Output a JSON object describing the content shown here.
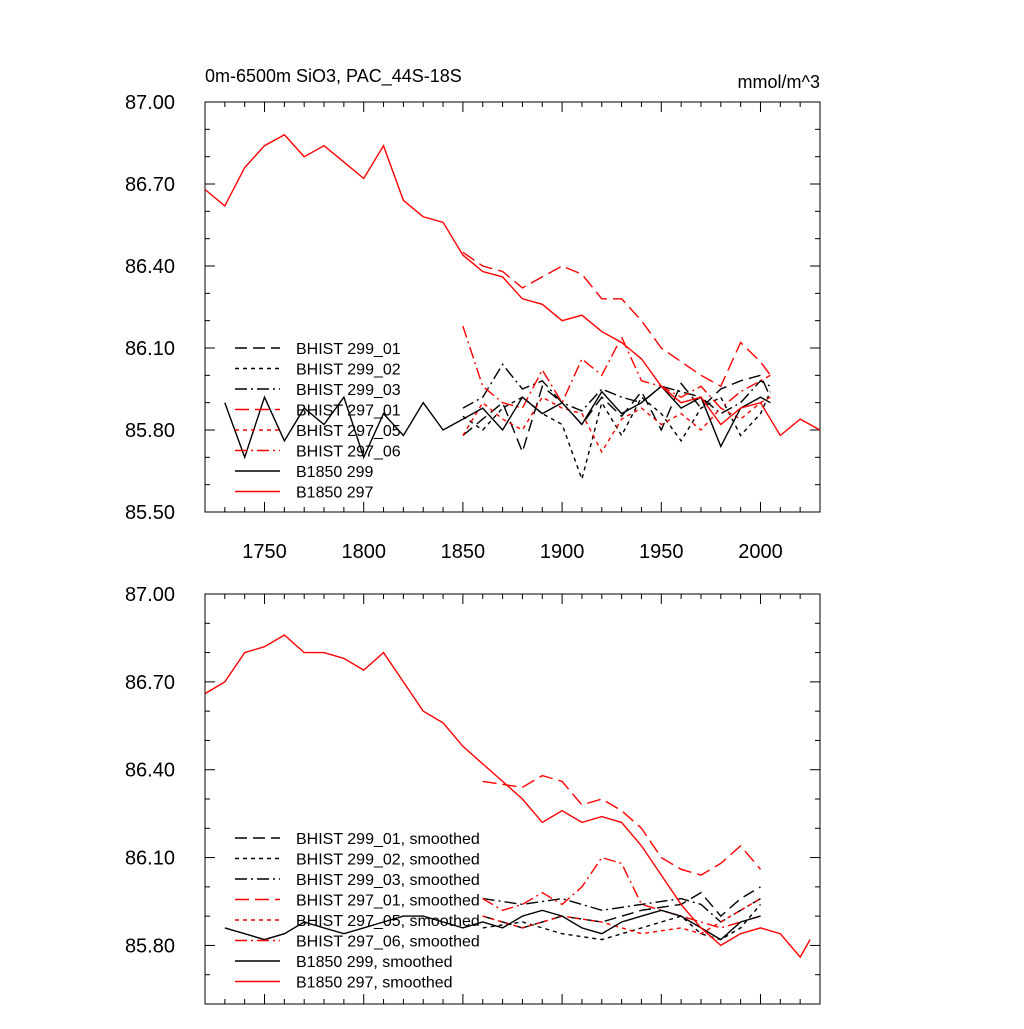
{
  "chart_data": [
    {
      "type": "line",
      "panel": "top",
      "title": "0m-6500m SiO3, PAC_44S-18S",
      "units": "mmol/m^3",
      "xlim": [
        1720,
        2030
      ],
      "ylim": [
        85.5,
        87.0
      ],
      "xticks": [
        1750,
        1800,
        1850,
        1900,
        1950,
        2000
      ],
      "xtick_labels": [
        "1750",
        "1800",
        "1850",
        "1900",
        "1950",
        "2000"
      ],
      "yticks": [
        85.5,
        85.8,
        86.1,
        86.4,
        86.7,
        87.0
      ],
      "ytick_labels": [
        "85.50",
        "85.80",
        "86.10",
        "86.40",
        "86.70",
        "87.00"
      ],
      "series": [
        {
          "name": "BHIST 299_01",
          "color": "#000000",
          "dash": "12,6",
          "x_range": [
            1850,
            2005
          ],
          "x": [
            1850,
            1860,
            1870,
            1880,
            1890,
            1900,
            1910,
            1920,
            1930,
            1940,
            1950,
            1960,
            1970,
            1980,
            1990,
            2000,
            2005
          ],
          "y": [
            85.78,
            85.84,
            85.9,
            85.72,
            85.96,
            85.9,
            85.82,
            85.92,
            85.85,
            85.94,
            85.8,
            85.97,
            85.88,
            85.95,
            85.98,
            86.0,
            85.92
          ]
        },
        {
          "name": "BHIST 299_02",
          "color": "#000000",
          "dash": "4,4",
          "x_range": [
            1850,
            2005
          ],
          "x": [
            1850,
            1860,
            1870,
            1880,
            1890,
            1900,
            1910,
            1920,
            1930,
            1940,
            1950,
            1960,
            1970,
            1980,
            1990,
            2000,
            2005
          ],
          "y": [
            85.85,
            85.8,
            85.88,
            85.92,
            85.86,
            85.82,
            85.62,
            85.9,
            85.78,
            85.92,
            85.86,
            85.76,
            85.88,
            85.92,
            85.78,
            85.86,
            85.94
          ]
        },
        {
          "name": "BHIST 299_03",
          "color": "#000000",
          "dash": "12,4,2,4",
          "x_range": [
            1850,
            2005
          ],
          "x": [
            1850,
            1860,
            1870,
            1880,
            1890,
            1900,
            1910,
            1920,
            1930,
            1940,
            1950,
            1960,
            1970,
            1980,
            1990,
            2000,
            2005
          ],
          "y": [
            85.88,
            85.92,
            86.04,
            85.95,
            85.98,
            85.9,
            85.87,
            85.95,
            85.92,
            85.9,
            85.96,
            85.94,
            85.92,
            85.86,
            85.9,
            85.98,
            85.96
          ]
        },
        {
          "name": "BHIST 297_01",
          "color": "#ff0000",
          "dash": "14,6",
          "x_range": [
            1850,
            2005
          ],
          "x": [
            1850,
            1860,
            1870,
            1880,
            1890,
            1900,
            1910,
            1920,
            1930,
            1940,
            1950,
            1960,
            1970,
            1980,
            1990,
            2000,
            2005
          ],
          "y": [
            86.45,
            86.4,
            86.38,
            86.32,
            86.36,
            86.4,
            86.37,
            86.28,
            86.28,
            86.2,
            86.1,
            86.05,
            86.0,
            85.96,
            86.12,
            86.05,
            86.0
          ]
        },
        {
          "name": "BHIST 297_05",
          "color": "#ff0000",
          "dash": "4,4",
          "x_range": [
            1850,
            2005
          ],
          "x": [
            1850,
            1860,
            1870,
            1880,
            1890,
            1900,
            1910,
            1920,
            1930,
            1940,
            1950,
            1960,
            1970,
            1980,
            1990,
            2000,
            2005
          ],
          "y": [
            85.78,
            85.9,
            85.84,
            85.8,
            85.92,
            85.88,
            85.86,
            85.72,
            85.84,
            85.88,
            85.82,
            85.86,
            85.8,
            85.88,
            85.84,
            85.9,
            85.92
          ]
        },
        {
          "name": "BHIST 297_06",
          "color": "#ff0000",
          "dash": "12,4,2,4",
          "x_range": [
            1850,
            2005
          ],
          "x": [
            1850,
            1860,
            1870,
            1880,
            1890,
            1900,
            1910,
            1920,
            1930,
            1940,
            1950,
            1960,
            1970,
            1980,
            1990,
            2000,
            2005
          ],
          "y": [
            86.18,
            85.96,
            85.9,
            85.88,
            86.02,
            85.9,
            86.06,
            86.0,
            86.14,
            85.98,
            85.96,
            85.92,
            85.96,
            85.88,
            85.94,
            85.98,
            86.0
          ]
        },
        {
          "name": "B1850 299",
          "color": "#000000",
          "dash": "",
          "x_range": [
            1730,
            2005
          ],
          "x": [
            1730,
            1740,
            1750,
            1760,
            1770,
            1780,
            1790,
            1800,
            1810,
            1820,
            1830,
            1840,
            1850,
            1860,
            1870,
            1880,
            1890,
            1900,
            1910,
            1920,
            1930,
            1940,
            1950,
            1960,
            1970,
            1980,
            1990,
            2000,
            2005
          ],
          "y": [
            85.9,
            85.7,
            85.92,
            85.76,
            85.88,
            85.82,
            85.92,
            85.7,
            85.86,
            85.78,
            85.9,
            85.8,
            85.84,
            85.88,
            85.8,
            85.92,
            85.86,
            85.9,
            85.82,
            85.94,
            85.86,
            85.9,
            85.96,
            85.88,
            85.92,
            85.74,
            85.88,
            85.92,
            85.9
          ]
        },
        {
          "name": "B1850 297",
          "color": "#ff0000",
          "dash": "",
          "x_range": [
            1720,
            2030
          ],
          "x": [
            1720,
            1730,
            1740,
            1750,
            1760,
            1770,
            1780,
            1790,
            1800,
            1810,
            1820,
            1830,
            1840,
            1850,
            1860,
            1870,
            1880,
            1890,
            1900,
            1910,
            1920,
            1930,
            1940,
            1950,
            1960,
            1970,
            1980,
            1990,
            2000,
            2010,
            2020,
            2030
          ],
          "y": [
            86.68,
            86.62,
            86.76,
            86.84,
            86.88,
            86.8,
            86.84,
            86.78,
            86.72,
            86.84,
            86.64,
            86.58,
            86.56,
            86.44,
            86.38,
            86.36,
            86.28,
            86.26,
            86.2,
            86.22,
            86.16,
            86.12,
            86.06,
            85.96,
            85.9,
            85.92,
            85.82,
            85.88,
            85.9,
            85.78,
            85.84,
            85.8
          ]
        }
      ]
    },
    {
      "type": "line",
      "panel": "bottom",
      "title": "",
      "xlim": [
        1720,
        2030
      ],
      "ylim": [
        85.6,
        87.0
      ],
      "yticks": [
        85.8,
        86.1,
        86.4,
        86.7,
        87.0
      ],
      "ytick_labels": [
        "85.80",
        "86.10",
        "86.40",
        "86.70",
        "87.00"
      ],
      "xticks": [
        1750,
        1800,
        1850,
        1900,
        1950,
        2000
      ],
      "series": [
        {
          "name": "BHIST 299_01, smoothed",
          "color": "#000000",
          "dash": "12,6",
          "x": [
            1860,
            1880,
            1900,
            1920,
            1940,
            1960,
            1970,
            1980,
            1990,
            2000
          ],
          "y": [
            85.9,
            85.86,
            85.9,
            85.88,
            85.92,
            85.94,
            85.98,
            85.9,
            85.96,
            86.0
          ]
        },
        {
          "name": "BHIST 299_02, smoothed",
          "color": "#000000",
          "dash": "4,4",
          "x": [
            1860,
            1880,
            1900,
            1920,
            1940,
            1960,
            1970,
            1980,
            1990,
            2000
          ],
          "y": [
            85.86,
            85.88,
            85.84,
            85.82,
            85.86,
            85.9,
            85.84,
            85.82,
            85.86,
            85.94
          ]
        },
        {
          "name": "BHIST 299_03, smoothed",
          "color": "#000000",
          "dash": "12,4,2,4",
          "x": [
            1860,
            1880,
            1900,
            1920,
            1940,
            1960,
            1970,
            1980,
            1990,
            2000
          ],
          "y": [
            85.96,
            85.94,
            85.96,
            85.92,
            85.94,
            85.96,
            85.94,
            85.88,
            85.92,
            85.96
          ]
        },
        {
          "name": "BHIST 297_01, smoothed",
          "color": "#ff0000",
          "dash": "14,6",
          "x": [
            1860,
            1880,
            1890,
            1900,
            1910,
            1920,
            1930,
            1940,
            1950,
            1960,
            1970,
            1980,
            1990,
            2000
          ],
          "y": [
            86.36,
            86.34,
            86.38,
            86.36,
            86.28,
            86.3,
            86.26,
            86.2,
            86.1,
            86.06,
            86.04,
            86.08,
            86.14,
            86.06
          ]
        },
        {
          "name": "BHIST 297_05, smoothed",
          "color": "#ff0000",
          "dash": "4,4",
          "x": [
            1860,
            1880,
            1900,
            1920,
            1940,
            1960,
            1970,
            1980,
            1990,
            2000
          ],
          "y": [
            85.9,
            85.86,
            85.9,
            85.88,
            85.84,
            85.86,
            85.84,
            85.88,
            85.92,
            85.96
          ]
        },
        {
          "name": "BHIST 297_06, smoothed",
          "color": "#ff0000",
          "dash": "12,4,2,4",
          "x": [
            1860,
            1870,
            1880,
            1890,
            1900,
            1910,
            1920,
            1930,
            1940,
            1950,
            1960,
            1970,
            1980,
            1990,
            2000
          ],
          "y": [
            85.96,
            85.92,
            85.94,
            85.98,
            85.94,
            86.0,
            86.1,
            86.08,
            85.94,
            85.92,
            85.9,
            85.88,
            85.86,
            85.88,
            85.9
          ]
        },
        {
          "name": "B1850 299, smoothed",
          "color": "#000000",
          "dash": "",
          "x": [
            1730,
            1740,
            1750,
            1760,
            1770,
            1780,
            1790,
            1800,
            1810,
            1820,
            1830,
            1840,
            1850,
            1860,
            1870,
            1880,
            1890,
            1900,
            1910,
            1920,
            1930,
            1940,
            1950,
            1960,
            1970,
            1980,
            1990,
            2000
          ],
          "y": [
            85.86,
            85.84,
            85.82,
            85.84,
            85.88,
            85.86,
            85.84,
            85.86,
            85.88,
            85.9,
            85.9,
            85.88,
            85.86,
            85.88,
            85.86,
            85.9,
            85.92,
            85.9,
            85.86,
            85.84,
            85.88,
            85.9,
            85.92,
            85.9,
            85.86,
            85.82,
            85.88,
            85.9
          ]
        },
        {
          "name": "B1850 297, smoothed",
          "color": "#ff0000",
          "dash": "",
          "x": [
            1720,
            1730,
            1740,
            1750,
            1760,
            1770,
            1780,
            1790,
            1800,
            1810,
            1820,
            1830,
            1840,
            1850,
            1860,
            1870,
            1880,
            1890,
            1900,
            1910,
            1920,
            1930,
            1940,
            1950,
            1960,
            1970,
            1980,
            1990,
            2000,
            2010,
            2020,
            2025
          ],
          "y": [
            86.66,
            86.7,
            86.8,
            86.82,
            86.86,
            86.8,
            86.8,
            86.78,
            86.74,
            86.8,
            86.7,
            86.6,
            86.56,
            86.48,
            86.42,
            86.36,
            86.3,
            86.22,
            86.26,
            86.22,
            86.24,
            86.22,
            86.14,
            86.04,
            85.94,
            85.86,
            85.8,
            85.84,
            85.86,
            85.84,
            85.76,
            85.82
          ]
        }
      ]
    }
  ]
}
